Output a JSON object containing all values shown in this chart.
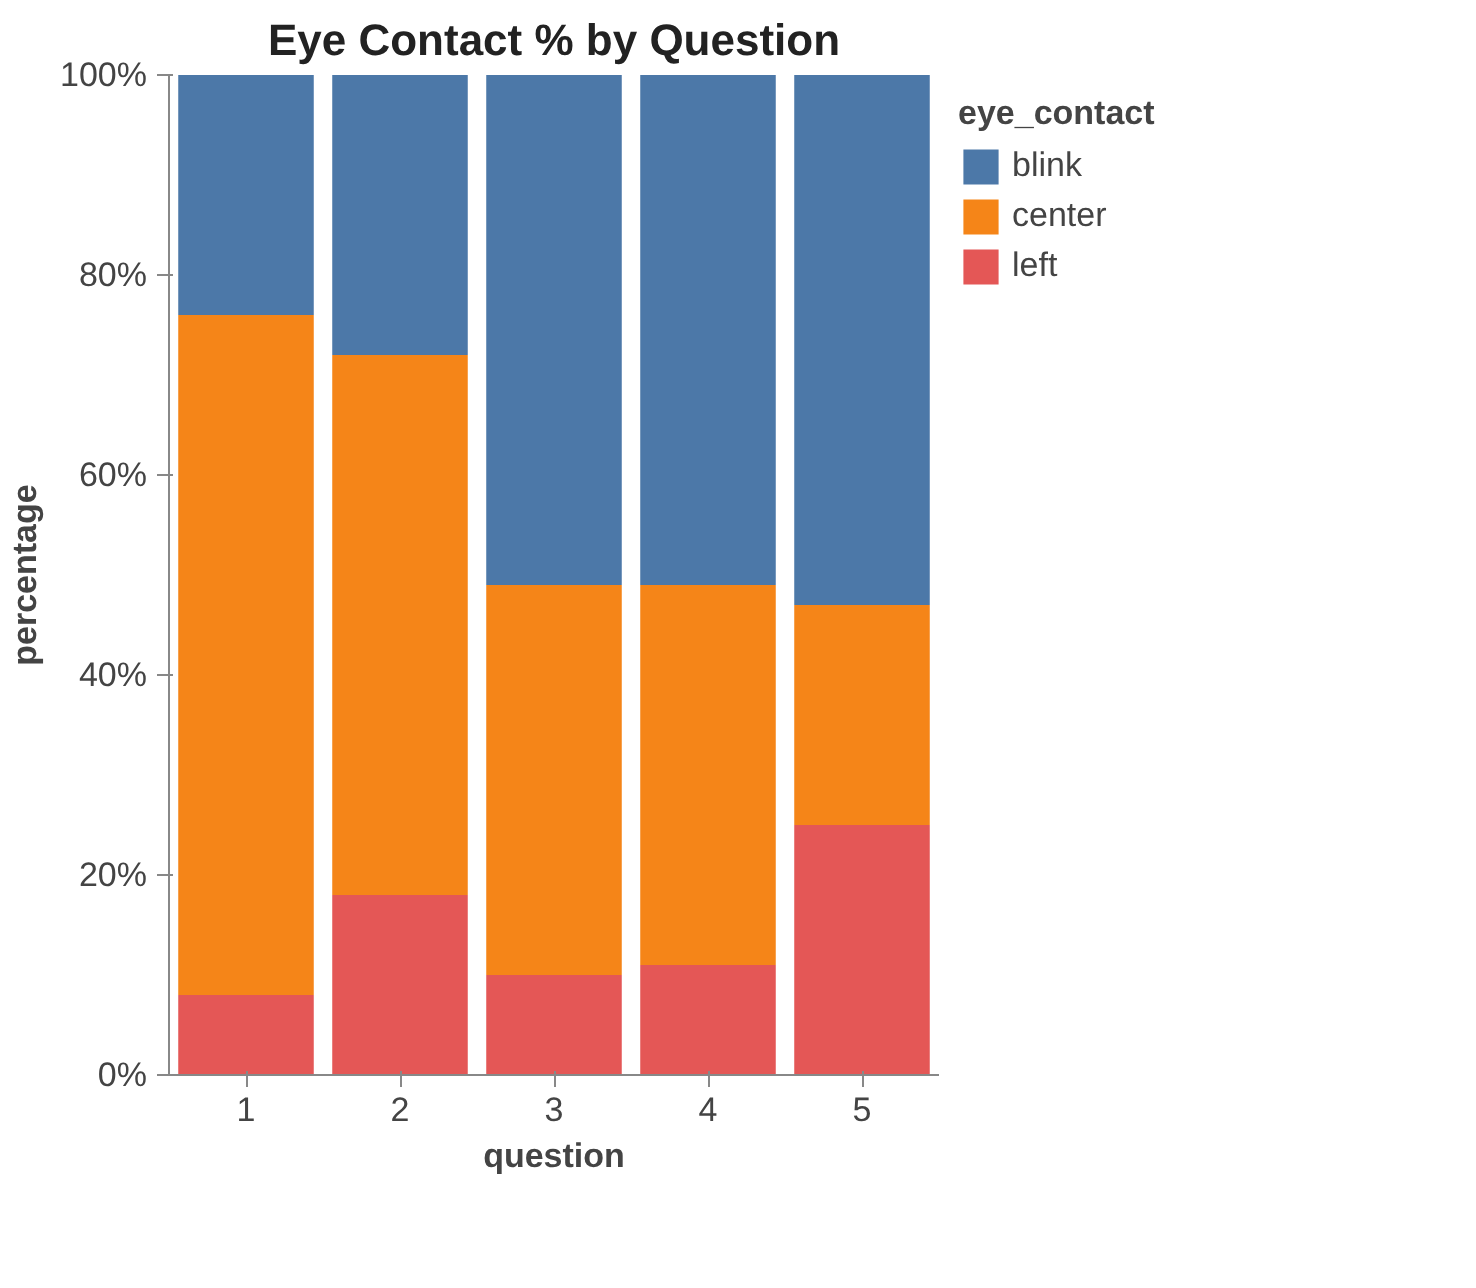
{
  "chart_data": {
    "type": "bar",
    "title": "Eye Contact % by Question",
    "xlabel": "question",
    "ylabel": "percentage",
    "legend_title": "eye_contact",
    "categories": [
      "1",
      "2",
      "3",
      "4",
      "5"
    ],
    "stacked": true,
    "series": [
      {
        "name": "left",
        "color": "#e45756",
        "values": [
          8,
          18,
          10,
          11,
          25
        ]
      },
      {
        "name": "center",
        "color": "#f58518",
        "values": [
          68,
          54,
          39,
          38,
          22
        ]
      },
      {
        "name": "blink",
        "color": "#4c78a8",
        "values": [
          24,
          28,
          51,
          51,
          53
        ]
      }
    ],
    "ylim": [
      0,
      100
    ],
    "yticks": [
      {
        "value": 0,
        "label": "0%"
      },
      {
        "value": 20,
        "label": "20%"
      },
      {
        "value": 40,
        "label": "40%"
      },
      {
        "value": 60,
        "label": "60%"
      },
      {
        "value": 80,
        "label": "80%"
      },
      {
        "value": 100,
        "label": "100%"
      }
    ],
    "grid": false,
    "legend": "top right"
  }
}
